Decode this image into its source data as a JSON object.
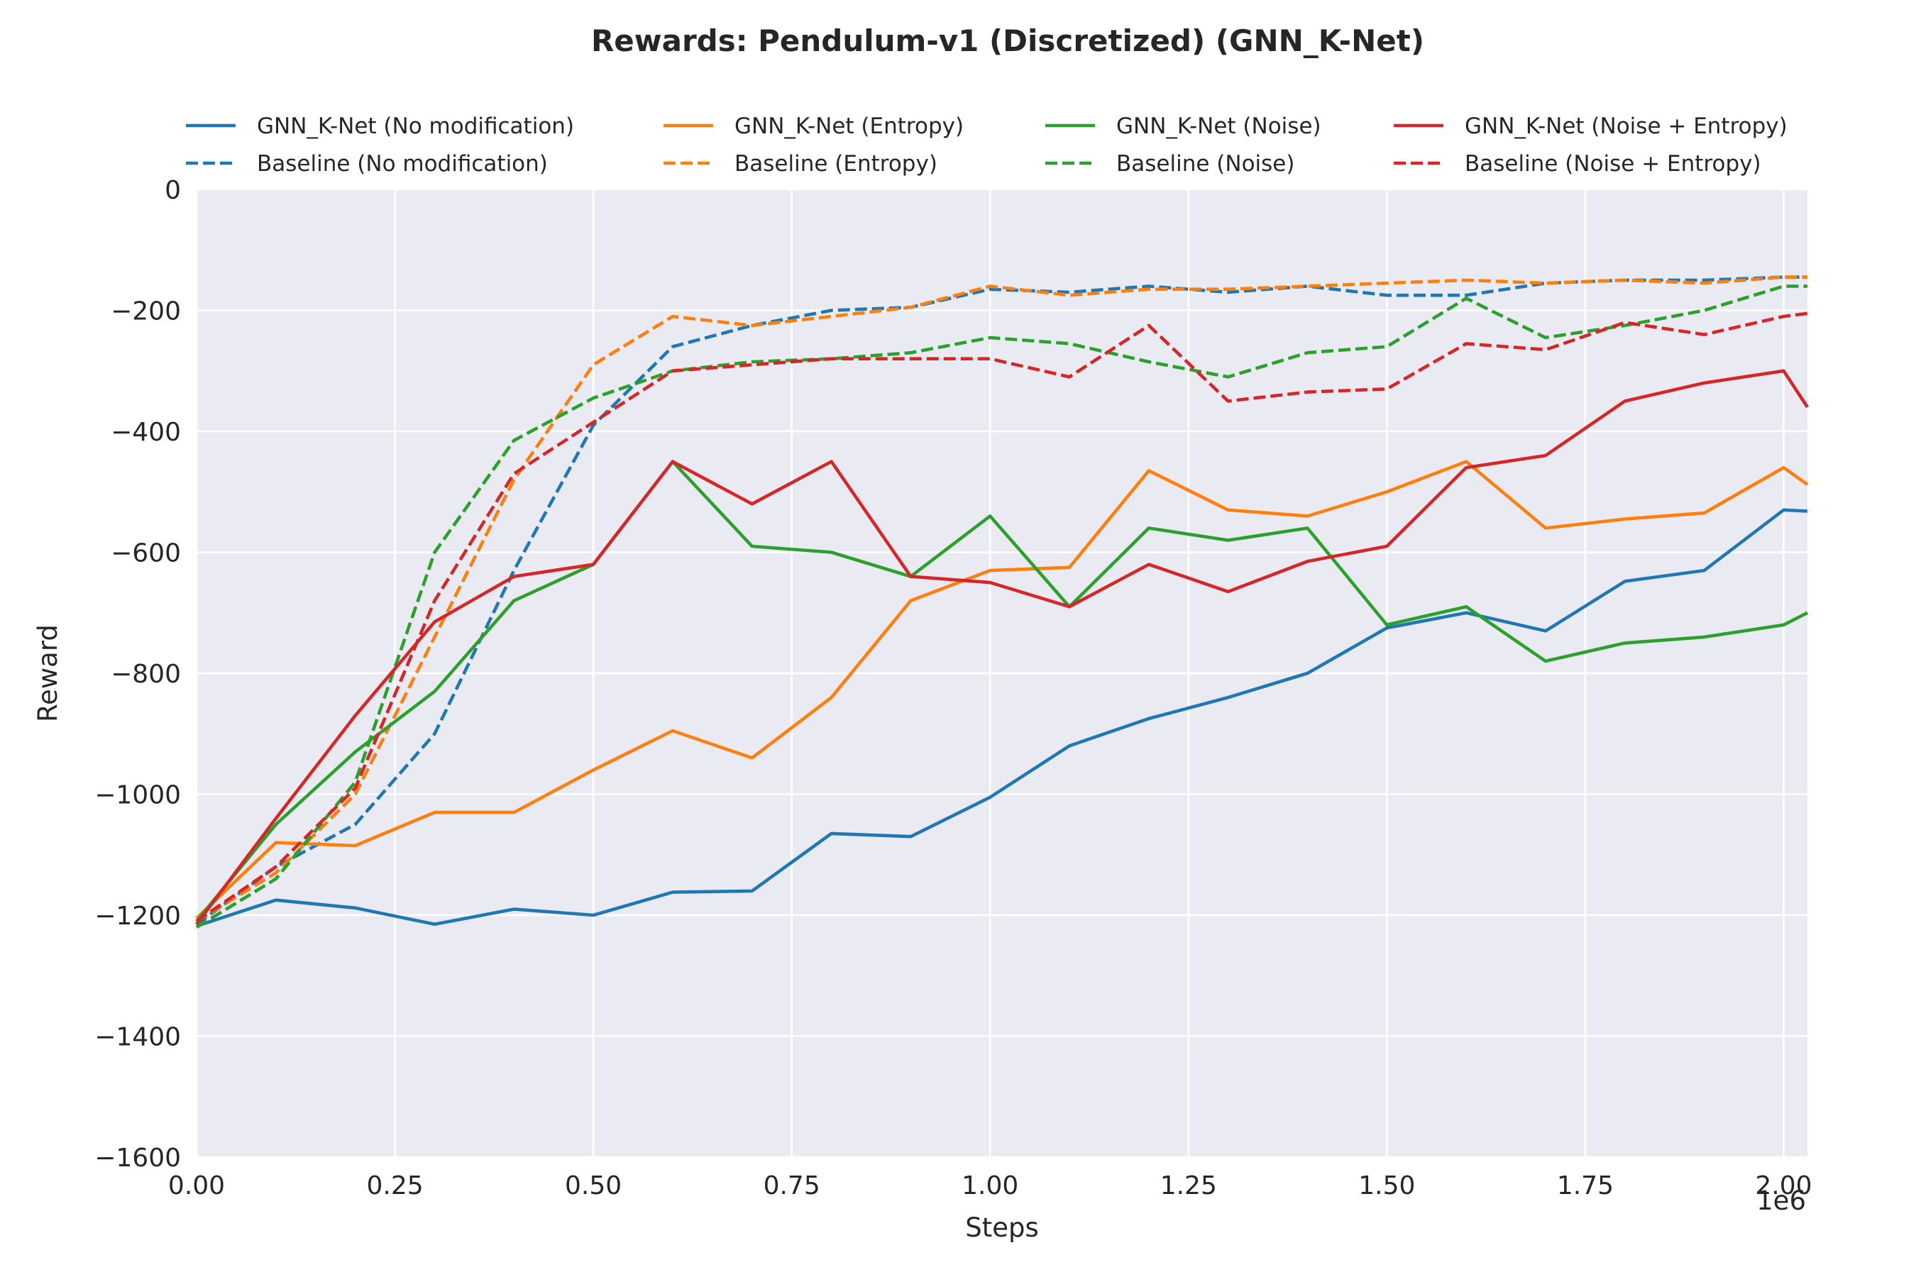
{
  "chart_data": {
    "type": "line",
    "title": "Rewards: Pendulum-v1 (Discretized) (GNN_K-Net)",
    "xlabel": "Steps",
    "ylabel": "Reward",
    "x_offset_label": "1e6",
    "xlim": [
      0,
      2.03
    ],
    "ylim": [
      -1600,
      0
    ],
    "xticks": [
      0,
      0.25,
      0.5,
      0.75,
      1.0,
      1.25,
      1.5,
      1.75,
      2.0
    ],
    "xtick_labels": [
      "0.00",
      "0.25",
      "0.50",
      "0.75",
      "1.00",
      "1.25",
      "1.50",
      "1.75",
      "2.00"
    ],
    "yticks": [
      0,
      -200,
      -400,
      -600,
      -800,
      -1000,
      -1200,
      -1400,
      -1600
    ],
    "ytick_labels": [
      "0",
      "−200",
      "−400",
      "−600",
      "−800",
      "−1000",
      "−1200",
      "−1400",
      "−1600"
    ],
    "grid": true,
    "legend_position": "top, 4 columns",
    "x": [
      0.0,
      0.1,
      0.2,
      0.3,
      0.4,
      0.5,
      0.6,
      0.7,
      0.8,
      0.9,
      1.0,
      1.1,
      1.2,
      1.3,
      1.4,
      1.5,
      1.6,
      1.7,
      1.8,
      1.9,
      2.0,
      2.03
    ],
    "series": [
      {
        "name": "GNN_K-Net (No modification)",
        "color": "#1f77b4",
        "style": "solid",
        "values": [
          -1218,
          -1175,
          -1188,
          -1215,
          -1190,
          -1200,
          -1162,
          -1160,
          -1065,
          -1070,
          -1005,
          -920,
          -875,
          -840,
          -800,
          -725,
          -700,
          -730,
          -648,
          -630,
          -530,
          -532
        ]
      },
      {
        "name": "Baseline (No modification)",
        "color": "#1f77b4",
        "style": "dashed",
        "values": [
          -1215,
          -1120,
          -1050,
          -900,
          -630,
          -390,
          -260,
          -225,
          -200,
          -195,
          -165,
          -170,
          -160,
          -170,
          -160,
          -175,
          -175,
          -155,
          -150,
          -150,
          -145,
          -145
        ]
      },
      {
        "name": "GNN_K-Net (Entropy)",
        "color": "#ff7f0e",
        "style": "solid",
        "values": [
          -1205,
          -1080,
          -1085,
          -1030,
          -1030,
          -960,
          -895,
          -940,
          -840,
          -680,
          -630,
          -625,
          -465,
          -530,
          -540,
          -500,
          -450,
          -560,
          -545,
          -535,
          -460,
          -488
        ]
      },
      {
        "name": "Baseline (Entropy)",
        "color": "#ff7f0e",
        "style": "dashed",
        "values": [
          -1210,
          -1130,
          -1000,
          -740,
          -480,
          -290,
          -210,
          -225,
          -210,
          -195,
          -160,
          -175,
          -165,
          -165,
          -160,
          -155,
          -150,
          -155,
          -150,
          -155,
          -145,
          -145
        ]
      },
      {
        "name": "GNN_K-Net (Noise)",
        "color": "#2ca02c",
        "style": "solid",
        "values": [
          -1210,
          -1050,
          -930,
          -830,
          -680,
          -620,
          -450,
          -590,
          -600,
          -640,
          -540,
          -690,
          -560,
          -580,
          -560,
          -720,
          -690,
          -780,
          -750,
          -740,
          -720,
          -700
        ]
      },
      {
        "name": "Baseline (Noise)",
        "color": "#2ca02c",
        "style": "dashed",
        "values": [
          -1220,
          -1140,
          -980,
          -600,
          -415,
          -345,
          -300,
          -285,
          -280,
          -270,
          -245,
          -255,
          -285,
          -310,
          -270,
          -260,
          -180,
          -245,
          -225,
          -200,
          -160,
          -160
        ]
      },
      {
        "name": "GNN_K-Net (Noise + Entropy)",
        "color": "#d62728",
        "style": "solid",
        "values": [
          -1215,
          -1040,
          -870,
          -715,
          -640,
          -620,
          -450,
          -520,
          -450,
          -640,
          -650,
          -690,
          -620,
          -665,
          -615,
          -590,
          -460,
          -440,
          -350,
          -320,
          -300,
          -360
        ]
      },
      {
        "name": "Baseline (Noise + Entropy)",
        "color": "#d62728",
        "style": "dashed",
        "values": [
          -1210,
          -1120,
          -990,
          -680,
          -470,
          -385,
          -300,
          -290,
          -280,
          -280,
          -280,
          -310,
          -225,
          -350,
          -335,
          -330,
          -255,
          -265,
          -220,
          -240,
          -210,
          -205
        ]
      }
    ]
  }
}
